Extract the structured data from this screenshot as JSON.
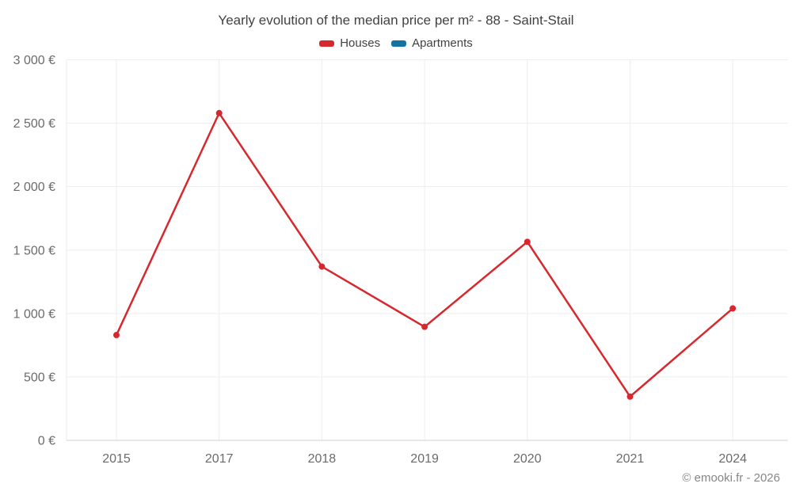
{
  "page": {
    "footer": "© emooki.fr - 2026"
  },
  "chart_data": {
    "type": "line",
    "title": "Yearly evolution of the median price per m² - 88 - Saint-Stail",
    "categories": [
      "2015",
      "2017",
      "2018",
      "2019",
      "2020",
      "2021",
      "2024"
    ],
    "series": [
      {
        "name": "Houses",
        "color": "#d7282e",
        "values": [
          830,
          2580,
          1370,
          895,
          1565,
          345,
          1040
        ]
      },
      {
        "name": "Apartments",
        "color": "#1272a3",
        "values": []
      }
    ],
    "xlabel": "",
    "ylabel": "",
    "ylim": [
      0,
      3000
    ],
    "ytick_step": 500,
    "ytick_labels": [
      "0 €",
      "500 €",
      "1 000 €",
      "1 500 €",
      "2 000 €",
      "2 500 €",
      "3 000 €"
    ],
    "grid": true,
    "legend_position": "top",
    "marker": "circle"
  }
}
